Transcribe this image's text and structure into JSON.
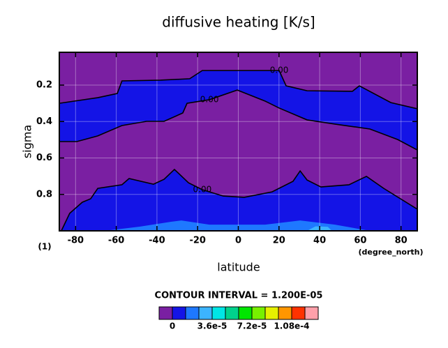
{
  "chart_data": {
    "type": "contour",
    "title": "diffusive heating [K/s]",
    "x_label": "latitude",
    "y_label": "sigma",
    "x_unit": "(degree_north)",
    "panel_label": "(1)",
    "xlim": [
      -88,
      88
    ],
    "ylim": [
      0.02,
      1
    ],
    "y_reversed": true,
    "xticks": [
      -80,
      -60,
      -40,
      -20,
      0,
      20,
      40,
      60,
      80
    ],
    "yticks": [
      0.2,
      0.4,
      0.6,
      0.8
    ],
    "grid": true,
    "background_color": "#7a1fa2",
    "regions": [
      {
        "color": "#1414e6",
        "x": [
          -88,
          -69.1,
          -59.5,
          -57.2,
          -38.3,
          -23.9,
          -17.7,
          20.1,
          23.5,
          33.8,
          56.1,
          59.5,
          75.0,
          88,
          88,
          78.4,
          64.7,
          47.5,
          33.8,
          20.1,
          13.2,
          -0.5,
          -14.2,
          -25.2,
          -27.3,
          -36.5,
          -45.1,
          -57.2,
          -69.1,
          -79.4,
          -88
        ],
        "y": [
          0.3,
          0.269,
          0.246,
          0.177,
          0.173,
          0.165,
          0.12,
          0.12,
          0.204,
          0.231,
          0.234,
          0.204,
          0.296,
          0.33,
          0.556,
          0.499,
          0.441,
          0.414,
          0.391,
          0.326,
          0.288,
          0.227,
          0.28,
          0.3,
          0.353,
          0.399,
          0.399,
          0.422,
          0.479,
          0.51,
          0.51
        ]
      },
      {
        "color": "#1414e6",
        "x": [
          -87,
          -82.9,
          -76.7,
          -72.6,
          -69.1,
          -57.2,
          -53.7,
          -41.7,
          -36.5,
          -31.4,
          -24.5,
          -17.7,
          -7.4,
          2.9,
          16.6,
          26.9,
          30.4,
          33.8,
          40.6,
          54.4,
          63.0,
          71.5,
          88,
          88
        ],
        "y": [
          1,
          0.904,
          0.843,
          0.824,
          0.767,
          0.747,
          0.713,
          0.744,
          0.717,
          0.663,
          0.736,
          0.774,
          0.809,
          0.816,
          0.786,
          0.728,
          0.671,
          0.721,
          0.759,
          0.747,
          0.701,
          0.767,
          0.881,
          1
        ]
      },
      {
        "color": "#1e78ff",
        "x": [
          -65.7,
          -48.5,
          -33.1,
          -28,
          -14.2,
          13.2,
          30.4,
          47.5,
          64.7
        ],
        "y": [
          1,
          0.977,
          0.95,
          0.943,
          0.966,
          0.966,
          0.943,
          0.966,
          1
        ]
      },
      {
        "color": "#3cb4ff",
        "x": [
          33.8,
          38,
          44,
          46
        ],
        "y": [
          1,
          0.975,
          0.978,
          1
        ]
      }
    ],
    "contours": [
      {
        "level": 0,
        "label": "0.00",
        "x": [
          -88,
          -69.1,
          -59.5,
          -57.2,
          -38.3,
          -23.9,
          -17.7,
          20.1,
          23.5,
          33.8,
          56.1,
          59.5,
          75.0,
          88
        ],
        "y": [
          0.3,
          0.269,
          0.246,
          0.177,
          0.173,
          0.165,
          0.12,
          0.12,
          0.204,
          0.231,
          0.234,
          0.204,
          0.296,
          0.33
        ]
      },
      {
        "level": 0,
        "label": "0.00",
        "x": [
          -88,
          -79.4,
          -69.1,
          -57.2,
          -45.1,
          -36.5,
          -27.3,
          -25.2,
          -14.2,
          -0.5,
          13.2,
          20.1,
          33.8,
          47.5,
          64.7,
          78.4,
          88
        ],
        "y": [
          0.51,
          0.51,
          0.479,
          0.422,
          0.399,
          0.399,
          0.353,
          0.3,
          0.28,
          0.227,
          0.288,
          0.326,
          0.391,
          0.414,
          0.441,
          0.499,
          0.556
        ]
      },
      {
        "level": 0,
        "label": "0.00",
        "x": [
          -87,
          -82.9,
          -76.7,
          -72.6,
          -69.1,
          -57.2,
          -53.7,
          -41.7,
          -36.5,
          -31.4,
          -24.5,
          -17.7,
          -7.4,
          2.9,
          16.6,
          26.9,
          30.4,
          33.8,
          40.6,
          54.4,
          63.0,
          71.5,
          88
        ],
        "y": [
          1,
          0.904,
          0.843,
          0.824,
          0.767,
          0.747,
          0.713,
          0.744,
          0.717,
          0.663,
          0.736,
          0.774,
          0.809,
          0.816,
          0.786,
          0.728,
          0.671,
          0.721,
          0.759,
          0.747,
          0.701,
          0.767,
          0.881
        ]
      }
    ],
    "contour_interval_label": "CONTOUR INTERVAL = 1.200E-05",
    "colorbar": {
      "levels": [
        0,
        1.2e-05,
        2.4e-05,
        3.6e-05,
        4.8e-05,
        6e-05,
        7.2e-05,
        8.4e-05,
        9.6e-05,
        0.000108,
        0.00012
      ],
      "colors": [
        "#7a1fa2",
        "#1414e6",
        "#1e78ff",
        "#3cb4ff",
        "#00e6e6",
        "#00d28c",
        "#00e600",
        "#78f000",
        "#e6f000",
        "#ff9600",
        "#ff3200",
        "#ffa0aa"
      ],
      "ticks": [
        0,
        {
          "value": 3.6e-05,
          "label": "3.6e-5"
        },
        {
          "value": 7.2e-05,
          "label": "7.2e-5"
        },
        {
          "value": 0.000108,
          "label": "1.08e-4"
        }
      ]
    }
  }
}
